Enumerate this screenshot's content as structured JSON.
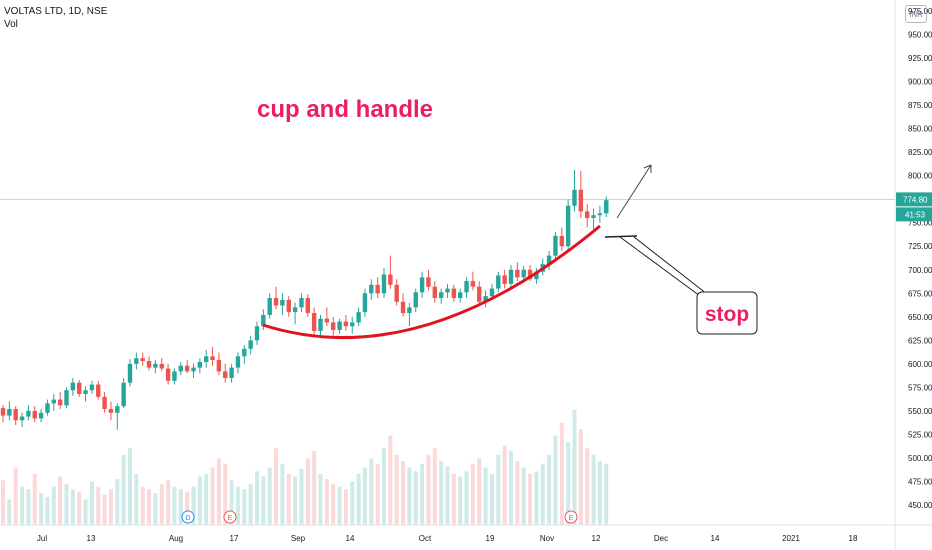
{
  "header": {
    "symbol_title": "VOLTAS LTD, 1D, NSE",
    "volume_label": "Vol",
    "currency": "INR"
  },
  "price_tags": {
    "last_price": "774.80",
    "countdown": "41:53"
  },
  "annotations": {
    "pattern_label": "cup and handle",
    "stop_label": "stop"
  },
  "event_markers": [
    "D",
    "E",
    "E"
  ],
  "colors": {
    "up": "#26a69a",
    "down": "#ef5350",
    "annotation": "#e91e63",
    "curve": "#e0141e"
  },
  "chart_data": {
    "type": "candlestick",
    "title": "VOLTAS LTD, 1D, NSE",
    "y_ticks": [
      450,
      475,
      500,
      525,
      550,
      575,
      600,
      625,
      650,
      675,
      700,
      725,
      750,
      775,
      800,
      825,
      850,
      875,
      900,
      925,
      950,
      975
    ],
    "x_ticks": [
      "Jul",
      "13",
      "Aug",
      "17",
      "Sep",
      "14",
      "Oct",
      "19",
      "Nov",
      "12",
      "Dec",
      "14",
      "2021",
      "18"
    ],
    "ylim": [
      440,
      985
    ],
    "last_price": 774.8,
    "candles": [
      [
        553,
        556,
        538,
        545
      ],
      [
        545,
        560,
        540,
        552
      ],
      [
        552,
        555,
        535,
        540
      ],
      [
        540,
        548,
        533,
        544
      ],
      [
        544,
        556,
        540,
        550
      ],
      [
        550,
        555,
        538,
        542
      ],
      [
        542,
        552,
        538,
        548
      ],
      [
        548,
        562,
        545,
        558
      ],
      [
        558,
        568,
        550,
        562
      ],
      [
        562,
        570,
        552,
        556
      ],
      [
        556,
        575,
        553,
        572
      ],
      [
        572,
        585,
        566,
        580
      ],
      [
        580,
        583,
        565,
        568
      ],
      [
        568,
        576,
        560,
        572
      ],
      [
        572,
        582,
        568,
        578
      ],
      [
        578,
        582,
        562,
        565
      ],
      [
        565,
        570,
        548,
        552
      ],
      [
        552,
        560,
        540,
        548
      ],
      [
        548,
        558,
        530,
        555
      ],
      [
        555,
        585,
        553,
        580
      ],
      [
        580,
        605,
        576,
        600
      ],
      [
        600,
        612,
        594,
        606
      ],
      [
        606,
        612,
        598,
        603
      ],
      [
        603,
        608,
        593,
        596
      ],
      [
        596,
        604,
        590,
        600
      ],
      [
        600,
        606,
        592,
        595
      ],
      [
        595,
        600,
        578,
        582
      ],
      [
        582,
        595,
        578,
        592
      ],
      [
        592,
        602,
        588,
        598
      ],
      [
        598,
        604,
        590,
        592
      ],
      [
        592,
        600,
        585,
        596
      ],
      [
        596,
        606,
        590,
        602
      ],
      [
        602,
        615,
        596,
        608
      ],
      [
        608,
        618,
        598,
        604
      ],
      [
        604,
        612,
        588,
        592
      ],
      [
        592,
        600,
        580,
        585
      ],
      [
        585,
        600,
        580,
        596
      ],
      [
        596,
        612,
        590,
        608
      ],
      [
        608,
        620,
        600,
        616
      ],
      [
        616,
        630,
        610,
        625
      ],
      [
        625,
        645,
        620,
        640
      ],
      [
        640,
        658,
        636,
        652
      ],
      [
        652,
        675,
        648,
        670
      ],
      [
        670,
        682,
        658,
        662
      ],
      [
        662,
        675,
        652,
        668
      ],
      [
        668,
        672,
        650,
        655
      ],
      [
        655,
        665,
        642,
        660
      ],
      [
        660,
        675,
        655,
        670
      ],
      [
        670,
        674,
        650,
        654
      ],
      [
        654,
        660,
        630,
        635
      ],
      [
        635,
        652,
        630,
        648
      ],
      [
        648,
        660,
        640,
        644
      ],
      [
        644,
        650,
        630,
        636
      ],
      [
        636,
        648,
        632,
        645
      ],
      [
        645,
        652,
        635,
        640
      ],
      [
        640,
        650,
        632,
        644
      ],
      [
        644,
        660,
        640,
        655
      ],
      [
        655,
        680,
        650,
        675
      ],
      [
        675,
        690,
        668,
        684
      ],
      [
        684,
        692,
        670,
        675
      ],
      [
        675,
        702,
        670,
        695
      ],
      [
        695,
        715,
        680,
        684
      ],
      [
        684,
        690,
        662,
        666
      ],
      [
        666,
        675,
        650,
        654
      ],
      [
        654,
        665,
        640,
        660
      ],
      [
        660,
        680,
        655,
        676
      ],
      [
        676,
        698,
        670,
        692
      ],
      [
        692,
        700,
        678,
        682
      ],
      [
        682,
        688,
        665,
        670
      ],
      [
        670,
        680,
        664,
        676
      ],
      [
        676,
        685,
        670,
        680
      ],
      [
        680,
        684,
        666,
        670
      ],
      [
        670,
        680,
        665,
        676
      ],
      [
        676,
        692,
        670,
        688
      ],
      [
        688,
        698,
        678,
        682
      ],
      [
        682,
        688,
        662,
        666
      ],
      [
        666,
        678,
        660,
        672
      ],
      [
        672,
        685,
        668,
        680
      ],
      [
        680,
        698,
        676,
        694
      ],
      [
        694,
        700,
        680,
        685
      ],
      [
        685,
        705,
        680,
        700
      ],
      [
        700,
        708,
        688,
        692
      ],
      [
        692,
        704,
        686,
        700
      ],
      [
        700,
        705,
        688,
        690
      ],
      [
        690,
        702,
        685,
        698
      ],
      [
        698,
        712,
        694,
        706
      ],
      [
        706,
        720,
        700,
        715
      ],
      [
        715,
        740,
        712,
        736
      ],
      [
        736,
        745,
        720,
        725
      ],
      [
        725,
        775,
        720,
        768
      ],
      [
        768,
        806,
        762,
        785
      ],
      [
        785,
        805,
        755,
        762
      ],
      [
        762,
        770,
        745,
        755
      ],
      [
        755,
        765,
        742,
        758
      ],
      [
        758,
        768,
        750,
        760
      ],
      [
        760,
        778,
        756,
        774
      ]
    ],
    "volume": [
      35,
      20,
      45,
      30,
      28,
      40,
      25,
      22,
      30,
      38,
      32,
      28,
      26,
      20,
      34,
      30,
      24,
      28,
      36,
      55,
      60,
      40,
      30,
      28,
      25,
      32,
      35,
      30,
      28,
      26,
      30,
      38,
      40,
      45,
      52,
      48,
      35,
      30,
      28,
      32,
      42,
      38,
      45,
      60,
      48,
      40,
      38,
      44,
      52,
      58,
      40,
      36,
      32,
      30,
      28,
      34,
      40,
      45,
      52,
      48,
      60,
      70,
      55,
      50,
      45,
      42,
      48,
      55,
      60,
      50,
      46,
      40,
      38,
      42,
      48,
      52,
      45,
      40,
      55,
      62,
      58,
      50,
      45,
      40,
      42,
      48,
      55,
      70,
      80,
      65,
      90,
      75,
      60,
      55,
      50,
      48
    ]
  }
}
